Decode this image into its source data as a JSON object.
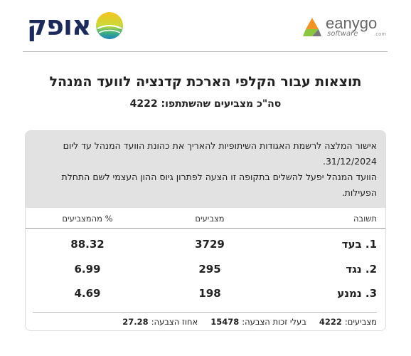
{
  "header": {
    "brand": "אופק",
    "partner": {
      "name": "eanygo",
      "tagline": "software",
      "domain": ".com"
    }
  },
  "title": "תוצאות עבור הקלפי הארכת קדנציה לוועד המנהל",
  "summary": {
    "label": "סה\"כ מצביעים שהשתתפו:",
    "value": 4222
  },
  "motion": {
    "lines": [
      "אישור המלצה לרשמת האגודות השיתופיות להאריך את כהונת הוועד המנהל עד ליום 31/12/2024.",
      "הוועד המנהל יפעל להשלים בתקופה זו הצעה לפתרון גיוס ההון העצמי לשם התחלת הפעילות."
    ]
  },
  "table": {
    "columns": [
      "תשובה",
      "מצביעים",
      "% מהמצביעים"
    ],
    "rows": [
      [
        "1. בעד",
        3729,
        88.32
      ],
      [
        "2. נגד",
        295,
        6.99
      ],
      [
        "3. נמנע",
        198,
        4.69
      ]
    ]
  },
  "footer": [
    {
      "label": "מצביעים:",
      "value": 4222
    },
    {
      "label": "בעלי זכות הצבעה:",
      "value": 15478
    },
    {
      "label": "אחוז הצבעה:",
      "value": 27.28
    }
  ]
}
